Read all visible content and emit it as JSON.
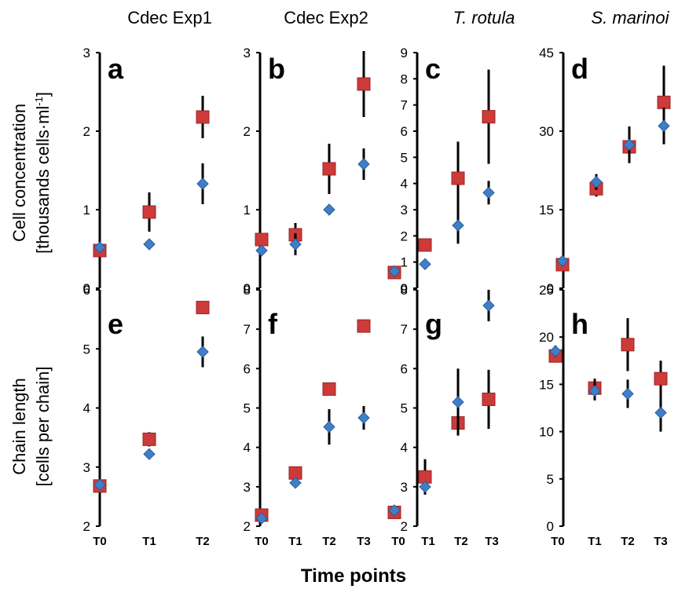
{
  "figure": {
    "column_titles": [
      "Cdec Exp1",
      "Cdec Exp2",
      "T. rotula",
      "S. marinoi"
    ],
    "row_labels": [
      [
        "Cell concentration",
        "[thousands cells·ml",
        "-1",
        "]"
      ],
      [
        "Chain length",
        "[cells per chain]"
      ]
    ],
    "xlabel": "Time points",
    "colors": {
      "red": "#cc3a3a",
      "blue": "#3f7fc8",
      "axis": "#000000"
    }
  },
  "chart_data": [
    {
      "panel": "a",
      "type": "scatter",
      "ylim": [
        0,
        3
      ],
      "yticks": [
        0,
        1,
        2,
        3
      ],
      "categories": [
        "T0",
        "T1",
        "T2"
      ],
      "series": [
        {
          "color": "red",
          "marker": "square",
          "values": [
            0.48,
            0.97,
            2.18
          ],
          "error": [
            0.05,
            0.25,
            0.27
          ]
        },
        {
          "color": "blue",
          "marker": "diamond",
          "values": [
            0.52,
            0.56,
            1.33
          ],
          "error": [
            0.03,
            0.03,
            0.26
          ]
        }
      ]
    },
    {
      "panel": "b",
      "type": "scatter",
      "ylim": [
        0,
        3
      ],
      "yticks": [
        0,
        1,
        2,
        3
      ],
      "categories": [
        "T0",
        "T1",
        "T2",
        "T3"
      ],
      "series": [
        {
          "color": "red",
          "marker": "square",
          "values": [
            0.62,
            0.68,
            1.52,
            2.6
          ],
          "error": [
            0.05,
            0.15,
            0.32,
            0.42
          ]
        },
        {
          "color": "blue",
          "marker": "diamond",
          "values": [
            0.48,
            0.56,
            1.0,
            1.58
          ],
          "error": [
            0.04,
            0.14,
            0.04,
            0.2
          ]
        }
      ]
    },
    {
      "panel": "c",
      "type": "scatter",
      "ylim": [
        0,
        9
      ],
      "yticks": [
        0,
        1,
        2,
        3,
        4,
        5,
        6,
        7,
        8,
        9
      ],
      "categories": [
        "T0",
        "T1",
        "T2",
        "T3"
      ],
      "series": [
        {
          "color": "red",
          "marker": "square",
          "values": [
            0.6,
            1.65,
            4.2,
            6.55
          ],
          "error": [
            0.1,
            0.25,
            1.4,
            1.8
          ]
        },
        {
          "color": "blue",
          "marker": "diamond",
          "values": [
            0.65,
            0.92,
            2.4,
            3.65
          ],
          "error": [
            0.1,
            0.1,
            0.7,
            0.45
          ]
        }
      ]
    },
    {
      "panel": "d",
      "type": "scatter",
      "ylim": [
        0,
        45
      ],
      "yticks": [
        0,
        15,
        30,
        45
      ],
      "categories": [
        "",
        "",
        "",
        ""
      ],
      "series": [
        {
          "color": "red",
          "marker": "square",
          "values": [
            4.5,
            19.0,
            27.0,
            35.5
          ],
          "error": [
            1.0,
            1.5,
            2.5,
            7.0
          ]
        },
        {
          "color": "blue",
          "marker": "diamond",
          "values": [
            5.2,
            20.3,
            27.4,
            31.0
          ],
          "error": [
            1.0,
            1.5,
            3.5,
            3.5
          ]
        }
      ]
    },
    {
      "panel": "e",
      "type": "scatter",
      "ylim": [
        2,
        6
      ],
      "yticks": [
        2,
        3,
        4,
        5,
        6
      ],
      "categories": [
        "T0",
        "T1",
        "T2"
      ],
      "series": [
        {
          "color": "red",
          "marker": "square",
          "values": [
            2.68,
            3.47,
            5.7
          ],
          "error": [
            0.04,
            0.12,
            0.07
          ]
        },
        {
          "color": "blue",
          "marker": "diamond",
          "values": [
            2.7,
            3.22,
            4.95
          ],
          "error": [
            0.04,
            0.06,
            0.26
          ]
        }
      ]
    },
    {
      "panel": "f",
      "type": "scatter",
      "ylim": [
        2,
        8
      ],
      "yticks": [
        2,
        3,
        4,
        5,
        6,
        7,
        8
      ],
      "categories": [
        "T0",
        "T1",
        "T2",
        "T3"
      ],
      "series": [
        {
          "color": "red",
          "marker": "square",
          "values": [
            2.28,
            3.35,
            5.48,
            7.08
          ],
          "error": [
            0.05,
            0.06,
            0.06,
            0.06
          ]
        },
        {
          "color": "blue",
          "marker": "diamond",
          "values": [
            2.2,
            3.1,
            4.52,
            4.75
          ],
          "error": [
            0.05,
            0.06,
            0.45,
            0.3
          ]
        }
      ]
    },
    {
      "panel": "g",
      "type": "scatter",
      "ylim": [
        2,
        8
      ],
      "yticks": [
        2,
        3,
        4,
        5,
        6,
        7,
        8
      ],
      "categories": [
        "T0",
        "T1",
        "T2",
        "T3"
      ],
      "series": [
        {
          "color": "red",
          "marker": "square",
          "values": [
            2.35,
            3.25,
            4.62,
            5.22
          ],
          "error": [
            0.06,
            0.45,
            0.3,
            0.75
          ]
        },
        {
          "color": "blue",
          "marker": "diamond",
          "values": [
            2.4,
            3.0,
            5.15,
            7.6
          ],
          "error": [
            0.06,
            0.08,
            0.85,
            0.4
          ]
        }
      ]
    },
    {
      "panel": "h",
      "type": "scatter",
      "ylim": [
        0,
        25
      ],
      "yticks": [
        0,
        5,
        10,
        15,
        20,
        25
      ],
      "categories": [
        "T0",
        "T1",
        "T2",
        "T3"
      ],
      "series": [
        {
          "color": "red",
          "marker": "square",
          "values": [
            18.0,
            14.6,
            19.2,
            15.6
          ],
          "error": [
            0.6,
            1.0,
            2.8,
            1.9
          ]
        },
        {
          "color": "blue",
          "marker": "diamond",
          "values": [
            18.5,
            14.3,
            14.0,
            12.0
          ],
          "error": [
            0.6,
            1.0,
            1.5,
            2.0
          ]
        }
      ]
    }
  ]
}
